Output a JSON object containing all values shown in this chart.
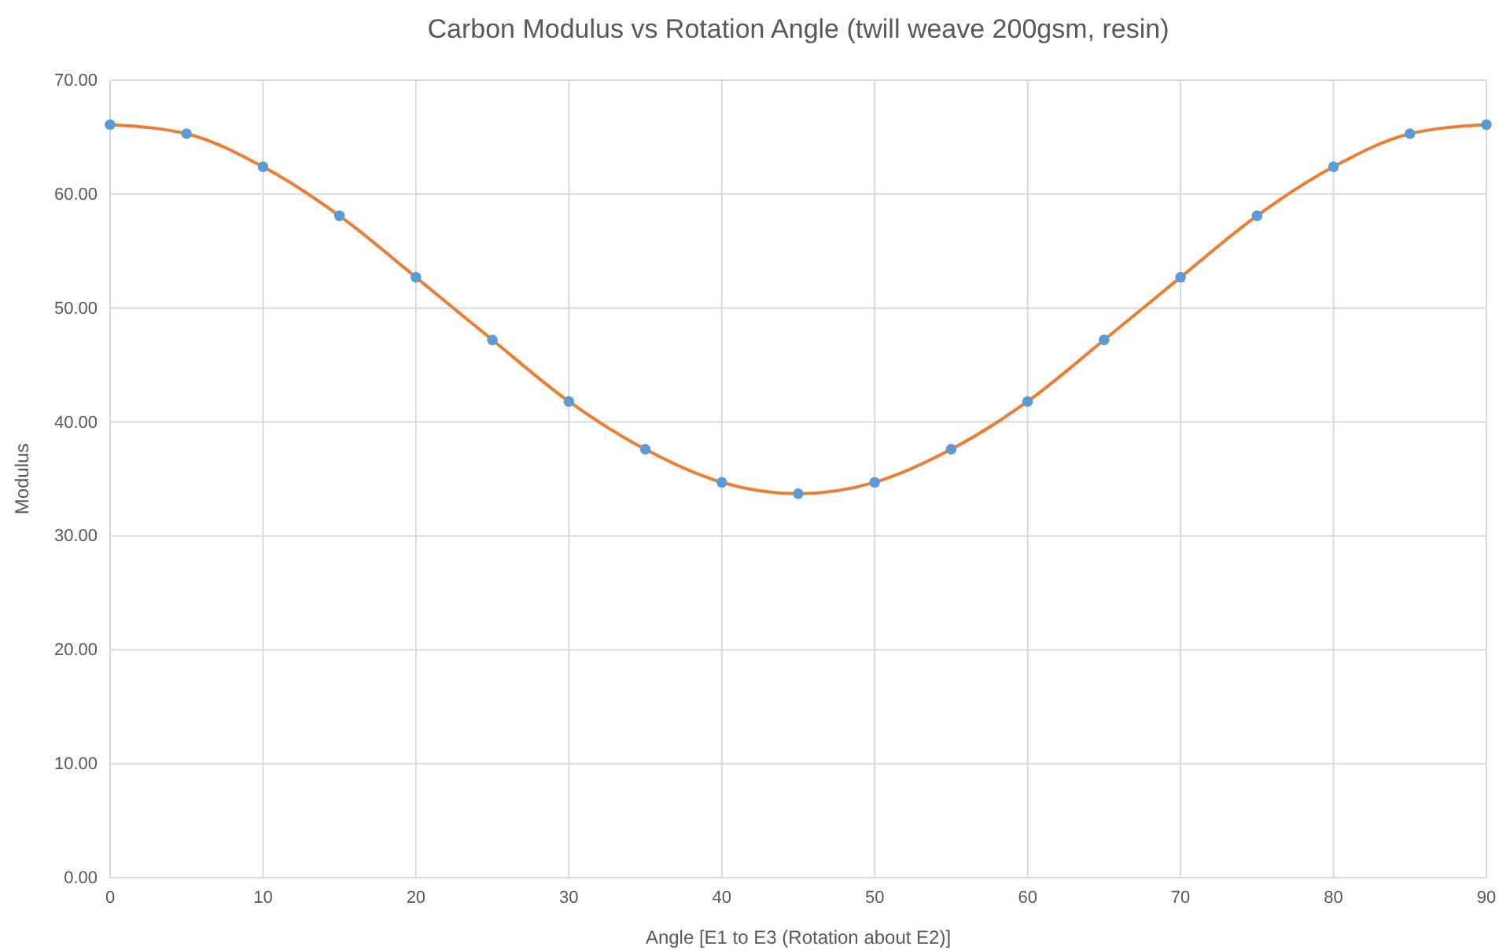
{
  "chart_data": {
    "type": "scatter",
    "title": "Carbon Modulus vs Rotation Angle (twill weave 200gsm, resin)",
    "xlabel": "Angle [E1 to E3 (Rotation about E2)]",
    "ylabel": "Modulus",
    "x": [
      0,
      5,
      10,
      15,
      20,
      25,
      30,
      35,
      40,
      45,
      50,
      55,
      60,
      65,
      70,
      75,
      80,
      85,
      90
    ],
    "series": [
      {
        "type": "line",
        "color": "#ed7d31",
        "line_style": "solid",
        "values": [
          66.1,
          65.3,
          62.4,
          58.1,
          52.7,
          47.2,
          41.8,
          37.6,
          34.7,
          33.7,
          34.7,
          37.6,
          41.8,
          47.2,
          52.7,
          58.1,
          62.4,
          65.3,
          66.1
        ]
      },
      {
        "color": "#5b9bd5",
        "marker": "circle",
        "values": [
          66.1,
          65.3,
          62.4,
          58.1,
          52.7,
          47.2,
          41.8,
          37.6,
          34.7,
          33.7,
          34.7,
          37.6,
          41.8,
          47.2,
          52.7,
          58.1,
          62.4,
          65.3,
          66.1
        ]
      }
    ],
    "xlim": [
      0,
      90
    ],
    "ylim": [
      0,
      70
    ],
    "xticks": [
      0,
      10,
      20,
      30,
      40,
      50,
      60,
      70,
      80,
      90
    ],
    "yticks": [
      {
        "value": 0,
        "label": "0.00"
      },
      {
        "value": 10,
        "label": "10.00"
      },
      {
        "value": 20,
        "label": "20.00"
      },
      {
        "value": 30,
        "label": "30.00"
      },
      {
        "value": 40,
        "label": "40.00"
      },
      {
        "value": 50,
        "label": "50.00"
      },
      {
        "value": 60,
        "label": "60.00"
      },
      {
        "value": 70,
        "label": "70.00"
      }
    ],
    "grid": true
  }
}
